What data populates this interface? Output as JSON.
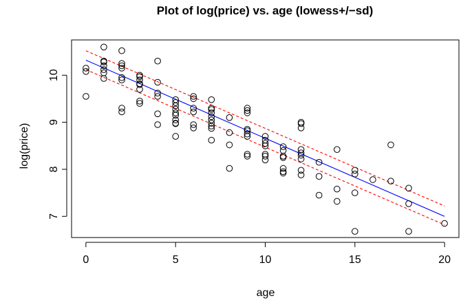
{
  "chart_data": {
    "type": "scatter",
    "title": "Plot of log(price) vs. age   (lowess+/−sd)",
    "xlabel": "age",
    "ylabel": "log(price)",
    "xlim": [
      -0.8,
      20.8
    ],
    "ylim": [
      6.55,
      10.75
    ],
    "xticks": [
      0,
      5,
      10,
      15,
      20
    ],
    "yticks": [
      7,
      8,
      9,
      10
    ],
    "grid": false,
    "colors": {
      "points": "#000000",
      "fit": "#0000ff",
      "band": "#ff0000"
    },
    "points": [
      [
        0,
        10.15
      ],
      [
        0,
        10.08
      ],
      [
        0,
        9.55
      ],
      [
        1,
        10.6
      ],
      [
        1,
        10.3
      ],
      [
        1,
        10.28
      ],
      [
        1,
        10.2
      ],
      [
        1,
        10.12
      ],
      [
        1,
        10.05
      ],
      [
        1,
        9.93
      ],
      [
        2,
        10.52
      ],
      [
        2,
        10.25
      ],
      [
        2,
        10.2
      ],
      [
        2,
        10.15
      ],
      [
        2,
        9.95
      ],
      [
        2,
        9.9
      ],
      [
        2,
        9.3
      ],
      [
        2,
        9.22
      ],
      [
        3,
        10.0
      ],
      [
        3,
        9.97
      ],
      [
        3,
        9.9
      ],
      [
        3,
        9.82
      ],
      [
        3,
        9.8
      ],
      [
        3,
        9.7
      ],
      [
        3,
        9.45
      ],
      [
        3,
        9.4
      ],
      [
        4,
        10.3
      ],
      [
        4,
        9.85
      ],
      [
        4,
        9.62
      ],
      [
        4,
        9.55
      ],
      [
        4,
        9.18
      ],
      [
        4,
        8.95
      ],
      [
        5,
        9.48
      ],
      [
        5,
        9.42
      ],
      [
        5,
        9.35
      ],
      [
        5,
        9.28
      ],
      [
        5,
        9.2
      ],
      [
        5,
        9.15
      ],
      [
        5,
        9.05
      ],
      [
        5,
        8.98
      ],
      [
        5,
        8.97
      ],
      [
        5,
        8.7
      ],
      [
        6,
        9.55
      ],
      [
        6,
        9.5
      ],
      [
        6,
        9.3
      ],
      [
        6,
        9.22
      ],
      [
        6,
        8.95
      ],
      [
        6,
        8.88
      ],
      [
        7,
        9.48
      ],
      [
        7,
        9.3
      ],
      [
        7,
        9.27
      ],
      [
        7,
        9.2
      ],
      [
        7,
        9.12
      ],
      [
        7,
        9.05
      ],
      [
        7,
        8.98
      ],
      [
        7,
        8.92
      ],
      [
        7,
        8.87
      ],
      [
        7,
        8.62
      ],
      [
        8,
        9.1
      ],
      [
        8,
        8.78
      ],
      [
        8,
        8.52
      ],
      [
        8,
        8.02
      ],
      [
        9,
        9.3
      ],
      [
        9,
        9.25
      ],
      [
        9,
        9.2
      ],
      [
        9,
        8.85
      ],
      [
        9,
        8.82
      ],
      [
        9,
        8.75
      ],
      [
        9,
        8.7
      ],
      [
        9,
        8.32
      ],
      [
        9,
        8.28
      ],
      [
        10,
        8.7
      ],
      [
        10,
        8.62
      ],
      [
        10,
        8.55
      ],
      [
        10,
        8.5
      ],
      [
        10,
        8.32
      ],
      [
        10,
        8.28
      ],
      [
        10,
        8.2
      ],
      [
        11,
        8.48
      ],
      [
        11,
        8.4
      ],
      [
        11,
        8.28
      ],
      [
        11,
        8.25
      ],
      [
        11,
        8.02
      ],
      [
        11,
        7.95
      ],
      [
        11,
        7.92
      ],
      [
        12,
        9.0
      ],
      [
        12,
        8.97
      ],
      [
        12,
        8.88
      ],
      [
        12,
        8.42
      ],
      [
        12,
        8.35
      ],
      [
        12,
        8.3
      ],
      [
        12,
        8.22
      ],
      [
        12,
        7.98
      ],
      [
        12,
        7.88
      ],
      [
        13,
        8.15
      ],
      [
        13,
        7.85
      ],
      [
        13,
        7.45
      ],
      [
        14,
        8.42
      ],
      [
        14,
        7.58
      ],
      [
        14,
        7.32
      ],
      [
        15,
        7.98
      ],
      [
        15,
        7.9
      ],
      [
        15,
        7.5
      ],
      [
        15,
        6.68
      ],
      [
        16,
        7.78
      ],
      [
        17,
        8.52
      ],
      [
        17,
        7.75
      ],
      [
        18,
        7.6
      ],
      [
        18,
        7.27
      ],
      [
        18,
        6.68
      ],
      [
        20,
        6.85
      ]
    ],
    "fit": [
      [
        0,
        10.32
      ],
      [
        20,
        7.0
      ]
    ],
    "upper_band": [
      [
        0,
        10.52
      ],
      [
        20,
        7.22
      ]
    ],
    "lower_band": [
      [
        0,
        10.12
      ],
      [
        20,
        6.82
      ]
    ]
  }
}
